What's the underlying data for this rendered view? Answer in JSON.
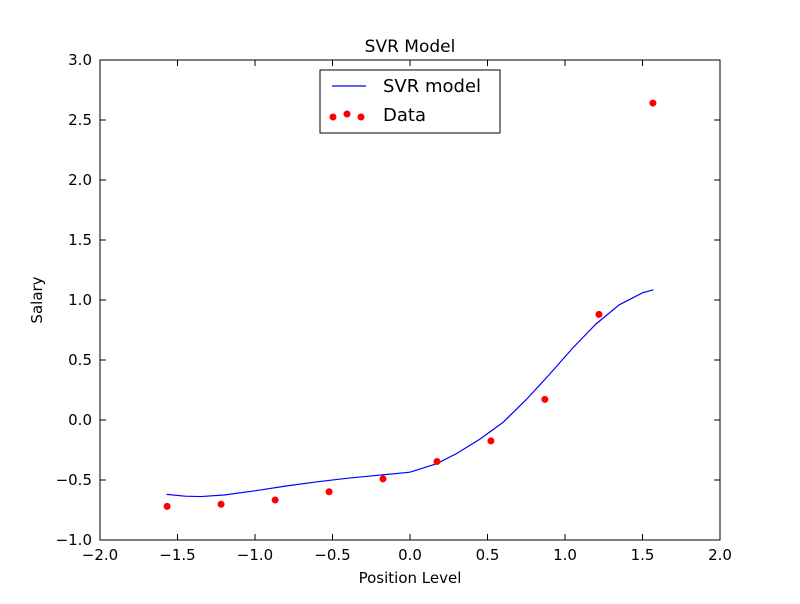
{
  "chart_data": {
    "type": "scatter",
    "title": "SVR Model",
    "xlabel": "Position Level",
    "ylabel": "Salary",
    "xlim": [
      -2.0,
      2.0
    ],
    "ylim": [
      -1.0,
      3.0
    ],
    "grid": false,
    "legend_position": "upper-center",
    "x_ticks": [
      -2.0,
      -1.5,
      -1.0,
      -0.5,
      0.0,
      0.5,
      1.0,
      1.5,
      2.0
    ],
    "x_tick_labels": [
      "−2.0",
      "−1.5",
      "−1.0",
      "−0.5",
      "0.0",
      "0.5",
      "1.0",
      "1.5",
      "2.0"
    ],
    "y_ticks": [
      -1.0,
      -0.5,
      0.0,
      0.5,
      1.0,
      1.5,
      2.0,
      2.5,
      3.0
    ],
    "y_tick_labels": [
      "−1.0",
      "−0.5",
      "0.0",
      "0.5",
      "1.0",
      "1.5",
      "2.0",
      "2.5",
      "3.0"
    ],
    "series": [
      {
        "name": "SVR model",
        "kind": "line",
        "color": "#0000ff",
        "x": [
          -1.57,
          -1.45,
          -1.35,
          -1.2,
          -1.0,
          -0.8,
          -0.6,
          -0.4,
          -0.2,
          0.0,
          0.17,
          0.3,
          0.45,
          0.6,
          0.75,
          0.9,
          1.05,
          1.2,
          1.35,
          1.5,
          1.57
        ],
        "y": [
          -0.62,
          -0.635,
          -0.638,
          -0.625,
          -0.59,
          -0.55,
          -0.515,
          -0.485,
          -0.46,
          -0.435,
          -0.365,
          -0.28,
          -0.16,
          -0.02,
          0.17,
          0.38,
          0.6,
          0.8,
          0.96,
          1.06,
          1.085
        ]
      },
      {
        "name": "Data",
        "kind": "scatter",
        "color": "#ff0000",
        "x": [
          -1.567,
          -1.219,
          -0.87,
          -0.522,
          -0.174,
          0.174,
          0.522,
          0.87,
          1.219,
          1.567
        ],
        "y": [
          -0.72,
          -0.702,
          -0.667,
          -0.598,
          -0.491,
          -0.346,
          -0.174,
          0.172,
          0.88,
          2.641
        ]
      }
    ]
  }
}
